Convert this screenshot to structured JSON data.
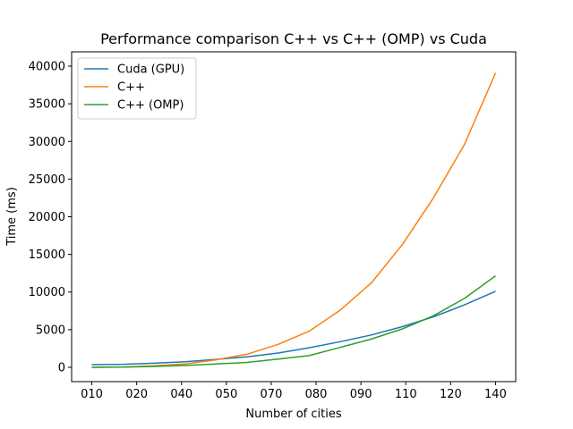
{
  "chart_data": {
    "type": "line",
    "title": "Performance comparison C++ vs C++ (OMP) vs Cuda",
    "xlabel": "Number of cities",
    "ylabel": "Time (ms)",
    "x_tick_labels": [
      "010",
      "020",
      "040",
      "050",
      "070",
      "080",
      "090",
      "110",
      "120",
      "140"
    ],
    "y_ticks": [
      0,
      5000,
      10000,
      15000,
      20000,
      25000,
      30000,
      35000,
      40000
    ],
    "ylim": [
      -1900,
      41900
    ],
    "grid": false,
    "legend_position": "top-left",
    "x": [
      0,
      1,
      2,
      3,
      4,
      5,
      6,
      7,
      8,
      9,
      10,
      11,
      12,
      13
    ],
    "series": [
      {
        "name": "Cuda (GPU)",
        "color": "#1f77b4",
        "values": [
          350,
          400,
          550,
          750,
          1050,
          1400,
          1900,
          2600,
          3400,
          4300,
          5400,
          6700,
          8300,
          10100
        ]
      },
      {
        "name": "C++",
        "color": "#ff7f0e",
        "values": [
          0,
          50,
          200,
          450,
          1000,
          1750,
          3050,
          4800,
          7600,
          11200,
          16300,
          22500,
          29600,
          39100
        ]
      },
      {
        "name": "C++ (OMP)",
        "color": "#2ca02c",
        "values": [
          0,
          30,
          120,
          250,
          450,
          650,
          1100,
          1550,
          2650,
          3750,
          5100,
          6850,
          9150,
          12150
        ]
      }
    ]
  }
}
